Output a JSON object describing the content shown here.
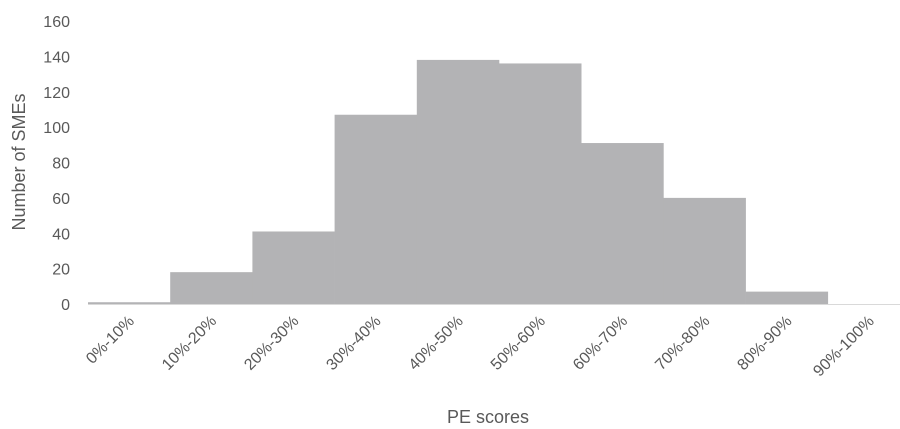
{
  "chart_data": {
    "type": "bar",
    "title": "",
    "xlabel": "PE scores",
    "ylabel": "Number of SMEs",
    "categories": [
      "0%-10%",
      "10%-20%",
      "20%-30%",
      "30%-40%",
      "40%-50%",
      "50%-60%",
      "60%-70%",
      "70%-80%",
      "80%-90%",
      "90%-100%"
    ],
    "values": [
      1,
      18,
      41,
      107,
      138,
      136,
      91,
      60,
      7,
      0
    ],
    "ylim": [
      0,
      160
    ],
    "yticks": [
      0,
      20,
      40,
      60,
      80,
      100,
      120,
      140,
      160
    ],
    "grid": false,
    "legend": "none",
    "bar_color": "#b3b3b5",
    "axis_line_color": "#d9d9d9",
    "text_color": "#595959"
  }
}
